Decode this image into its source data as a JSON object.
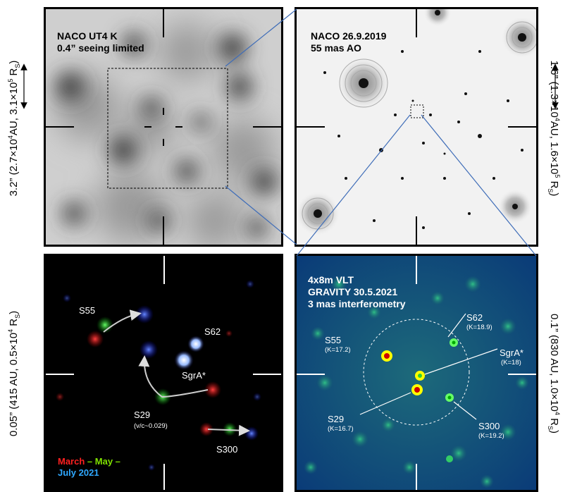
{
  "panels": {
    "top_left": {
      "line1": "NACO UT4 K",
      "line2": "0.4” seeing limited"
    },
    "top_right": {
      "line1": "NACO 26.9.2019",
      "line2": "55 mas AO"
    },
    "bottom_right": {
      "line1": "4x8m VLT",
      "line2": "GRAVITY 30.5.2021",
      "line3": "3 mas interferometry"
    }
  },
  "side_labels": {
    "left_top_main": "3.2” (2.7×10",
    "left_top_mid": "AU, 3.1×10",
    "left_top_exp1": "4",
    "left_top_exp2": "5",
    "left_top_R": "R",
    "left_top_sub": "S",
    "left_top_close": ")",
    "left_bottom_main": "0.05” (415 AU, 0.5×10",
    "left_bottom_exp": "4",
    "left_bottom_R": "R",
    "left_bottom_sub": "S",
    "left_bottom_close": ")",
    "right_top_main": "1.6” (1.3×10",
    "right_top_mid": "AU, 1.6×10",
    "right_top_exp1": "4",
    "right_top_exp2": "5",
    "right_top_R": "R",
    "right_top_sub": "S",
    "right_top_close": ")",
    "right_bottom_main": "0.1” (830 AU, 1.0×10",
    "right_bottom_exp": "4",
    "right_bottom_R": "R",
    "right_bottom_sub": "S",
    "right_bottom_close": ")"
  },
  "stars_bottom_left": {
    "s55": "S55",
    "s62": "S62",
    "sgra": "SgrA*",
    "s29": "S29",
    "s29_sub": "(v/c~0.029)",
    "s300": "S300"
  },
  "stars_bottom_right": {
    "s62": "S62",
    "s62_k": "(K=18.9)",
    "s55": "S55",
    "s55_k": "(K=17.2)",
    "sgra": "SgrA*",
    "sgra_k": "(K=18)",
    "s29": "S29",
    "s29_k": "(K=16.7)",
    "s300": "S300",
    "s300_k": "(K=19.2)"
  },
  "legend": {
    "march": "March",
    "dash1": " – ",
    "may": "May",
    "dash2": " –",
    "july": "July 2021"
  },
  "colors": {
    "march": "#ff2020",
    "may": "#7fe000",
    "july": "#2fa8ff",
    "zoom_line": "#3f6db8"
  }
}
